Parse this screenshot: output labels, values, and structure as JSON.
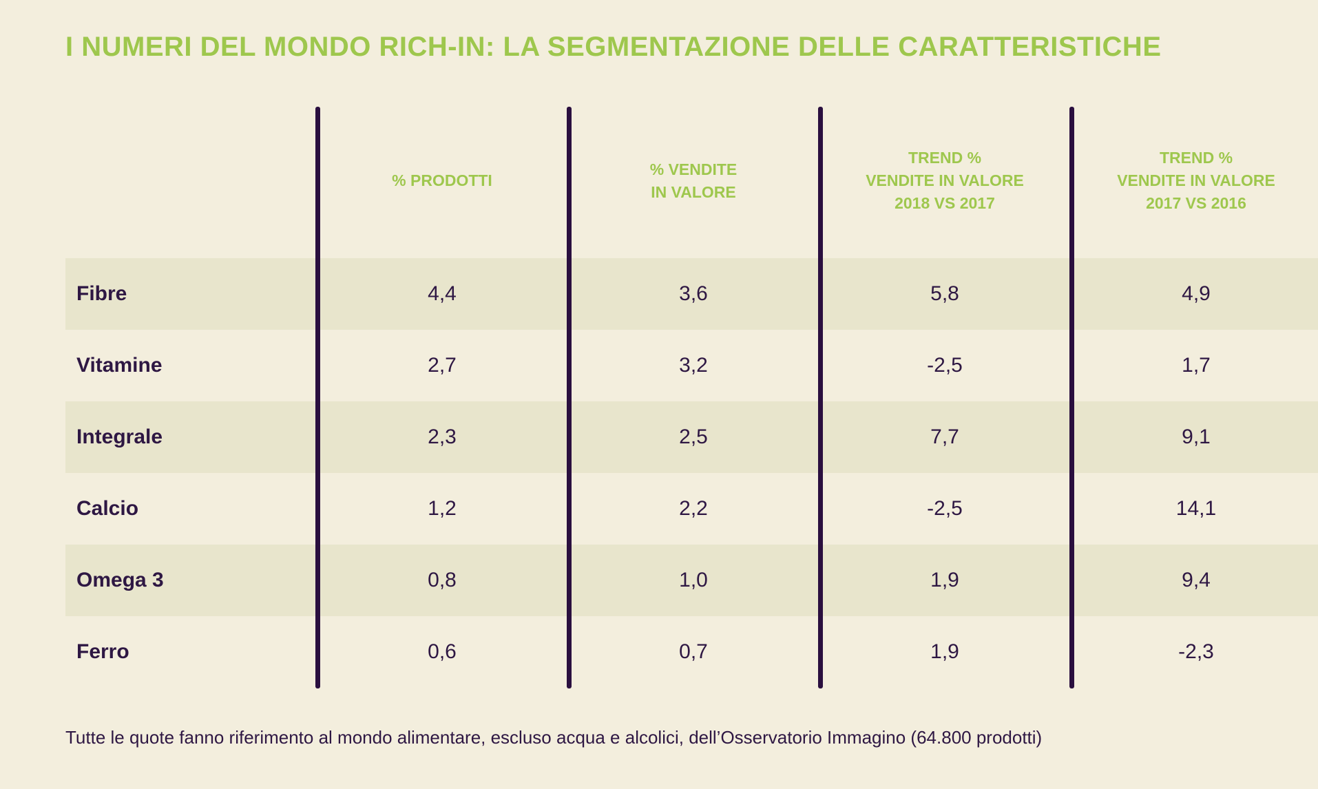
{
  "title": "I NUMERI DEL MONDO RICH-IN: LA SEGMENTAZIONE DELLE CARATTERISTICHE",
  "footnote": "Tutte le quote fanno riferimento al mondo alimentare, escluso acqua e alcolici, dell’Osservatorio Immagino (64.800 prodotti)",
  "colors": {
    "accent": "#9ec74d",
    "text": "#2e1743",
    "divider": "#2a0f3f",
    "background": "#f3eedd",
    "row_shade": "#e8e5cc"
  },
  "chart_data": {
    "type": "table",
    "title": "I NUMERI DEL MONDO RICH-IN: LA SEGMENTAZIONE DELLE CARATTERISTICHE",
    "columns": [
      "% PRODOTTI",
      "% VENDITE\nIN VALORE",
      "TREND %\nVENDITE IN VALORE\n2018 VS 2017",
      "TREND %\nVENDITE IN VALORE\n2017 VS 2016"
    ],
    "rows": [
      {
        "label": "Fibre",
        "values": [
          "4,4",
          "3,6",
          "5,8",
          "4,9"
        ]
      },
      {
        "label": "Vitamine",
        "values": [
          "2,7",
          "3,2",
          "-2,5",
          "1,7"
        ]
      },
      {
        "label": "Integrale",
        "values": [
          "2,3",
          "2,5",
          "7,7",
          "9,1"
        ]
      },
      {
        "label": "Calcio",
        "values": [
          "1,2",
          "2,2",
          "-2,5",
          "14,1"
        ]
      },
      {
        "label": "Omega 3",
        "values": [
          "0,8",
          "1,0",
          "1,9",
          "9,4"
        ]
      },
      {
        "label": "Ferro",
        "values": [
          "0,6",
          "0,7",
          "1,9",
          "-2,3"
        ]
      }
    ]
  }
}
